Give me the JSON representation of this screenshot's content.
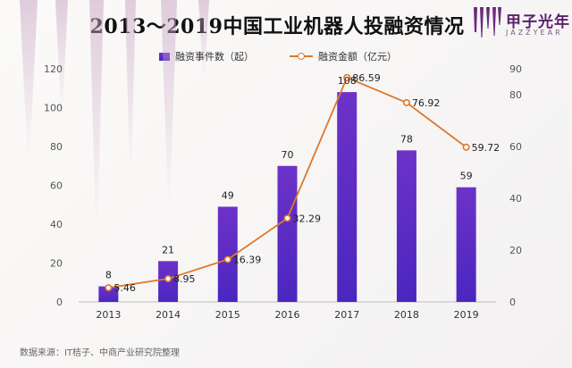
{
  "title": "2013～2019中国工业机器人投融资情况",
  "logo": {
    "name": "甲子光年",
    "sub": "JAZZYEAR"
  },
  "source": "数据来源：IT桔子、中商产业研究院整理",
  "colors": {
    "bar_top": "#6d32c8",
    "bar_bottom": "#4a26c0",
    "line": "#e0772a"
  },
  "chart_data": {
    "type": "bar+line",
    "categories": [
      "2013",
      "2014",
      "2015",
      "2016",
      "2017",
      "2018",
      "2019"
    ],
    "series": [
      {
        "name": "融资事件数（起）",
        "type": "bar",
        "axis": "left",
        "values": [
          8,
          21,
          49,
          70,
          108,
          78,
          59
        ]
      },
      {
        "name": "融资金额（亿元）",
        "type": "line",
        "axis": "right",
        "values": [
          5.46,
          8.95,
          16.39,
          32.29,
          86.59,
          76.92,
          59.72
        ]
      }
    ],
    "ylim_left": [
      0,
      120
    ],
    "yticks_left": [
      0,
      20,
      40,
      60,
      80,
      100,
      120
    ],
    "ylim_right": [
      0,
      90
    ],
    "yticks_right": [
      0,
      20,
      40,
      60,
      80,
      90
    ],
    "xlabel": "",
    "ylabel": ""
  }
}
